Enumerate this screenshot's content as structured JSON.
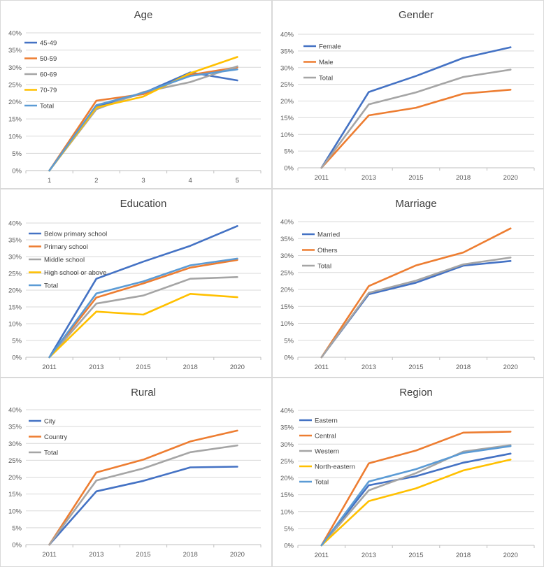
{
  "chart_data": [
    {
      "type": "line",
      "title": "Age",
      "categories": [
        "1",
        "2",
        "3",
        "4",
        "5"
      ],
      "ylim": [
        0,
        0.4
      ],
      "yticks": [
        "0%",
        "5%",
        "10%",
        "15%",
        "20%",
        "25%",
        "30%",
        "35%",
        "40%"
      ],
      "series": [
        {
          "name": "45-49",
          "color": "#4472C4",
          "values": [
            0,
            0.185,
            0.225,
            0.285,
            0.262
          ]
        },
        {
          "name": "50-59",
          "color": "#ED7D31",
          "values": [
            0,
            0.203,
            0.222,
            0.278,
            0.3
          ]
        },
        {
          "name": "60-69",
          "color": "#A5A5A5",
          "values": [
            0,
            0.178,
            0.228,
            0.257,
            0.303
          ]
        },
        {
          "name": "70-79",
          "color": "#FFC000",
          "values": [
            0,
            0.183,
            0.215,
            0.283,
            0.33
          ]
        },
        {
          "name": "Total",
          "color": "#5B9BD5",
          "values": [
            0,
            0.19,
            0.226,
            0.275,
            0.294
          ]
        }
      ]
    },
    {
      "type": "line",
      "title": "Gender",
      "categories": [
        "2011",
        "2013",
        "2015",
        "2018",
        "2020"
      ],
      "ylim": [
        0,
        0.4
      ],
      "yticks": [
        "0%",
        "5%",
        "10%",
        "15%",
        "20%",
        "25%",
        "30%",
        "35%",
        "40%"
      ],
      "series": [
        {
          "name": "Female",
          "color": "#4472C4",
          "values": [
            0,
            0.227,
            0.275,
            0.329,
            0.361
          ]
        },
        {
          "name": "Male",
          "color": "#ED7D31",
          "values": [
            0,
            0.157,
            0.18,
            0.222,
            0.234
          ]
        },
        {
          "name": "Total",
          "color": "#A5A5A5",
          "values": [
            0,
            0.19,
            0.226,
            0.272,
            0.294
          ]
        }
      ]
    },
    {
      "type": "line",
      "title": "Education",
      "categories": [
        "2011",
        "2013",
        "2015",
        "2018",
        "2020"
      ],
      "ylim": [
        0,
        0.4
      ],
      "yticks": [
        "0%",
        "5%",
        "10%",
        "15%",
        "20%",
        "25%",
        "30%",
        "35%",
        "40%"
      ],
      "series": [
        {
          "name": "Below primary school",
          "color": "#4472C4",
          "values": [
            0,
            0.234,
            0.285,
            0.332,
            0.391
          ]
        },
        {
          "name": "Primary school",
          "color": "#ED7D31",
          "values": [
            0,
            0.178,
            0.22,
            0.267,
            0.29
          ]
        },
        {
          "name": "Middle school",
          "color": "#A5A5A5",
          "values": [
            0,
            0.16,
            0.184,
            0.234,
            0.239
          ]
        },
        {
          "name": "High school or above",
          "color": "#FFC000",
          "values": [
            0,
            0.136,
            0.127,
            0.189,
            0.179
          ]
        },
        {
          "name": "Total",
          "color": "#5B9BD5",
          "values": [
            0,
            0.19,
            0.226,
            0.274,
            0.294
          ]
        }
      ]
    },
    {
      "type": "line",
      "title": "Marriage",
      "categories": [
        "2011",
        "2013",
        "2015",
        "2018",
        "2020"
      ],
      "ylim": [
        0,
        0.4
      ],
      "yticks": [
        "0%",
        "5%",
        "10%",
        "15%",
        "20%",
        "25%",
        "30%",
        "35%",
        "40%"
      ],
      "series": [
        {
          "name": "Married",
          "color": "#4472C4",
          "values": [
            0,
            0.186,
            0.22,
            0.27,
            0.284
          ]
        },
        {
          "name": "Others",
          "color": "#ED7D31",
          "values": [
            0,
            0.21,
            0.271,
            0.309,
            0.38
          ]
        },
        {
          "name": "Total",
          "color": "#A5A5A5",
          "values": [
            0,
            0.19,
            0.226,
            0.274,
            0.294
          ]
        }
      ]
    },
    {
      "type": "line",
      "title": "Rural",
      "categories": [
        "2011",
        "2013",
        "2015",
        "2018",
        "2020"
      ],
      "ylim": [
        0,
        0.4
      ],
      "yticks": [
        "0%",
        "5%",
        "10%",
        "15%",
        "20%",
        "25%",
        "30%",
        "35%",
        "40%"
      ],
      "series": [
        {
          "name": "City",
          "color": "#4472C4",
          "values": [
            0,
            0.158,
            0.189,
            0.229,
            0.231
          ]
        },
        {
          "name": "Country",
          "color": "#ED7D31",
          "values": [
            0,
            0.214,
            0.252,
            0.306,
            0.338
          ]
        },
        {
          "name": "Total",
          "color": "#A5A5A5",
          "values": [
            0,
            0.19,
            0.226,
            0.274,
            0.294
          ]
        }
      ]
    },
    {
      "type": "line",
      "title": "Region",
      "categories": [
        "2011",
        "2013",
        "2015",
        "2018",
        "2020"
      ],
      "ylim": [
        0,
        0.4
      ],
      "yticks": [
        "0%",
        "5%",
        "10%",
        "15%",
        "20%",
        "25%",
        "30%",
        "35%",
        "40%"
      ],
      "series": [
        {
          "name": "Eastern",
          "color": "#4472C4",
          "values": [
            0,
            0.178,
            0.205,
            0.245,
            0.272
          ]
        },
        {
          "name": "Central",
          "color": "#ED7D31",
          "values": [
            0,
            0.243,
            0.281,
            0.334,
            0.337
          ]
        },
        {
          "name": "Western",
          "color": "#A5A5A5",
          "values": [
            0,
            0.163,
            0.214,
            0.278,
            0.297
          ]
        },
        {
          "name": "North-eastern",
          "color": "#FFC000",
          "values": [
            0,
            0.131,
            0.169,
            0.222,
            0.254
          ]
        },
        {
          "name": "Total",
          "color": "#5B9BD5",
          "values": [
            0,
            0.189,
            0.226,
            0.274,
            0.294
          ]
        }
      ]
    }
  ]
}
